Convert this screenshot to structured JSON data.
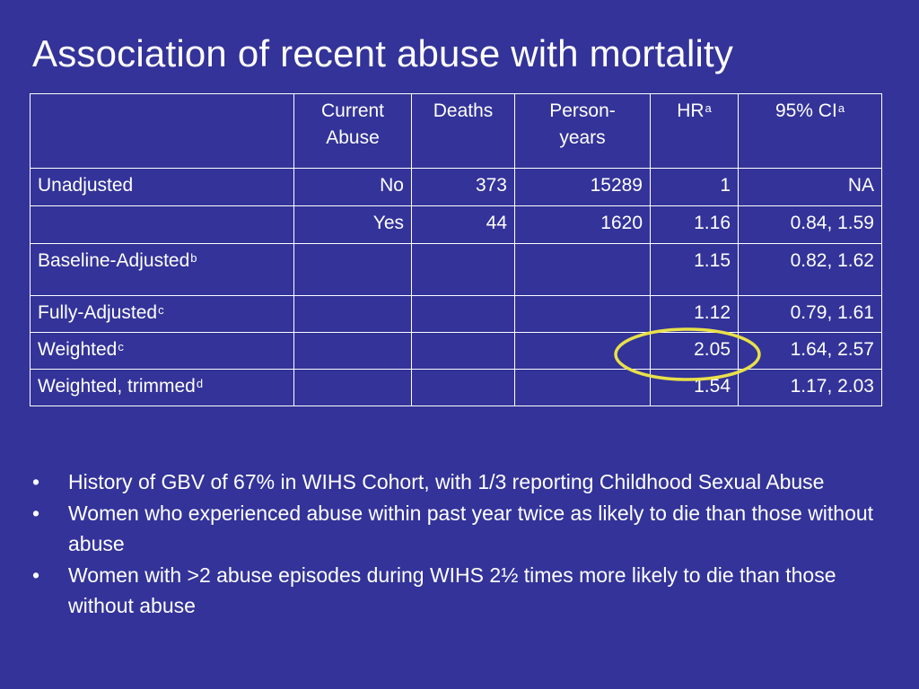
{
  "title": "Association of recent abuse with mortality",
  "table": {
    "headers": [
      {
        "main": "",
        "sup": ""
      },
      {
        "main": "Current Abuse",
        "sup": ""
      },
      {
        "main": "Deaths",
        "sup": ""
      },
      {
        "main": "Person-years",
        "sup": ""
      },
      {
        "main": "HR",
        "sup": "a"
      },
      {
        "main": "95% CI",
        "sup": "a"
      }
    ],
    "rows": [
      {
        "label": "Unadjusted",
        "sup": "",
        "current_abuse": "No",
        "deaths": "373",
        "person_years": "15289",
        "hr": "1",
        "ci": "NA"
      },
      {
        "label": "",
        "sup": "",
        "current_abuse": "Yes",
        "deaths": "44",
        "person_years": "1620",
        "hr": "1.16",
        "ci": "0.84, 1.59"
      },
      {
        "label": "Baseline-Adjusted",
        "sup": "b",
        "current_abuse": "",
        "deaths": "",
        "person_years": "",
        "hr": "1.15",
        "ci": "0.82, 1.62"
      },
      {
        "label": "Fully-Adjusted",
        "sup": "c",
        "current_abuse": "",
        "deaths": "",
        "person_years": "",
        "hr": "1.12",
        "ci": "0.79, 1.61"
      },
      {
        "label": "Weighted",
        "sup": "c",
        "current_abuse": "",
        "deaths": "",
        "person_years": "",
        "hr": "2.05",
        "ci": "1.64, 2.57"
      },
      {
        "label": "Weighted, trimmed",
        "sup": "d",
        "current_abuse": "",
        "deaths": "",
        "person_years": "",
        "hr": "1.54",
        "ci": "1.17, 2.03"
      }
    ]
  },
  "bullets": [
    {
      "symbol": "•",
      "text": "History of GBV of 67% in WIHS Cohort, with 1/3 reporting Childhood Sexual Abuse"
    },
    {
      "symbol": "•",
      "text": "Women who experienced abuse within past year twice as likely to die than those without abuse"
    },
    {
      "symbol": "•",
      "text": "Women with >2 abuse episodes during WIHS 2½ times more likely to die than those without abuse"
    }
  ],
  "colors": {
    "background": "#333399",
    "text": "#ffffff",
    "highlight": "#e8e04a"
  }
}
